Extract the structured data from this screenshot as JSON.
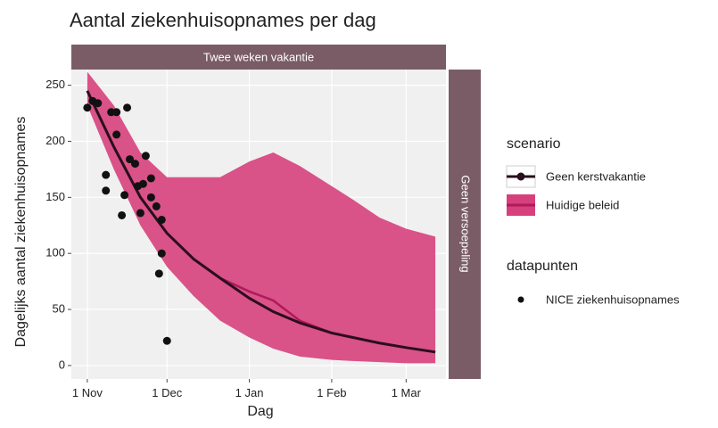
{
  "chart_data": {
    "type": "line",
    "title": "Aantal ziekenhuisopnames per dag",
    "x_label": "Dag",
    "y_label": "Dagelijks aantal ziekenhuisopnames",
    "strip_top": "Twee weken vakantie",
    "strip_right": "Geen versoepeling",
    "legend_title": "scenario",
    "points_legend_title": "datapunten",
    "grid": true,
    "xlim": [
      -6,
      135
    ],
    "ylim": [
      -12,
      264
    ],
    "xticks": [
      {
        "value": 0,
        "label": "1 Nov"
      },
      {
        "value": 30,
        "label": "1 Dec"
      },
      {
        "value": 61,
        "label": "1 Jan"
      },
      {
        "value": 92,
        "label": "1 Feb"
      },
      {
        "value": 120,
        "label": "1 Mar"
      }
    ],
    "yticks": [
      0,
      50,
      100,
      150,
      200,
      250
    ],
    "series": [
      {
        "name": "Geen kerstvakantie",
        "color": "#2a0f1d",
        "x": [
          0,
          10,
          20,
          30,
          40,
          50,
          61,
          70,
          80,
          92,
          100,
          110,
          120,
          131
        ],
        "values": [
          245,
          195,
          150,
          118,
          95,
          78,
          60,
          48,
          38,
          29,
          25,
          20,
          16,
          12
        ]
      },
      {
        "name": "Huidige beleid",
        "color": "#b0195a",
        "band_color": "#d6407c",
        "x": [
          0,
          10,
          20,
          30,
          40,
          50,
          61,
          70,
          80,
          92,
          100,
          110,
          120,
          131
        ],
        "values": [
          245,
          195,
          150,
          118,
          95,
          78,
          66,
          58,
          40,
          29,
          25,
          20,
          16,
          12
        ],
        "upper": [
          262,
          232,
          190,
          168,
          168,
          168,
          182,
          190,
          178,
          160,
          148,
          132,
          122,
          115
        ],
        "lower": [
          232,
          175,
          125,
          88,
          62,
          40,
          25,
          15,
          8,
          5,
          4,
          3,
          2,
          2
        ]
      }
    ],
    "points": {
      "name": "NICE ziekenhuisopnames",
      "color": "#111111",
      "x": [
        0,
        2,
        4,
        7,
        7,
        9,
        11,
        15,
        11,
        14,
        13,
        16,
        18,
        19,
        21,
        22,
        20,
        24,
        24,
        26,
        28,
        28,
        27,
        30
      ],
      "values": [
        230,
        236,
        234,
        170,
        156,
        226,
        226,
        230,
        206,
        152,
        134,
        184,
        180,
        160,
        162,
        187,
        136,
        167,
        150,
        142,
        130,
        100,
        82,
        22
      ]
    }
  }
}
